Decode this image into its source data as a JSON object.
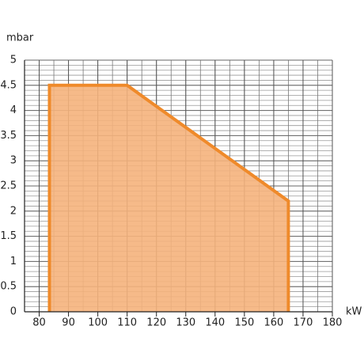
{
  "chart_data": {
    "type": "area",
    "y_label": "mbar",
    "x_label": "kW",
    "x": [
      83.5,
      83.5,
      110,
      165,
      165
    ],
    "series": [
      {
        "color": "#ef8a2a",
        "fill": "#f5b27c",
        "values": [
          0,
          4.5,
          4.5,
          2.2,
          0
        ]
      }
    ],
    "xlim": [
      75,
      180
    ],
    "ylim": [
      0,
      5
    ],
    "xticks": [
      80,
      90,
      100,
      110,
      120,
      130,
      140,
      150,
      160,
      170,
      180
    ],
    "yticks": [
      0,
      0.5,
      1,
      1.5,
      2,
      2.5,
      3,
      3.5,
      4,
      4.5,
      5
    ],
    "grid": true,
    "minor_grid": {
      "x": 5,
      "y": 0.1
    }
  }
}
